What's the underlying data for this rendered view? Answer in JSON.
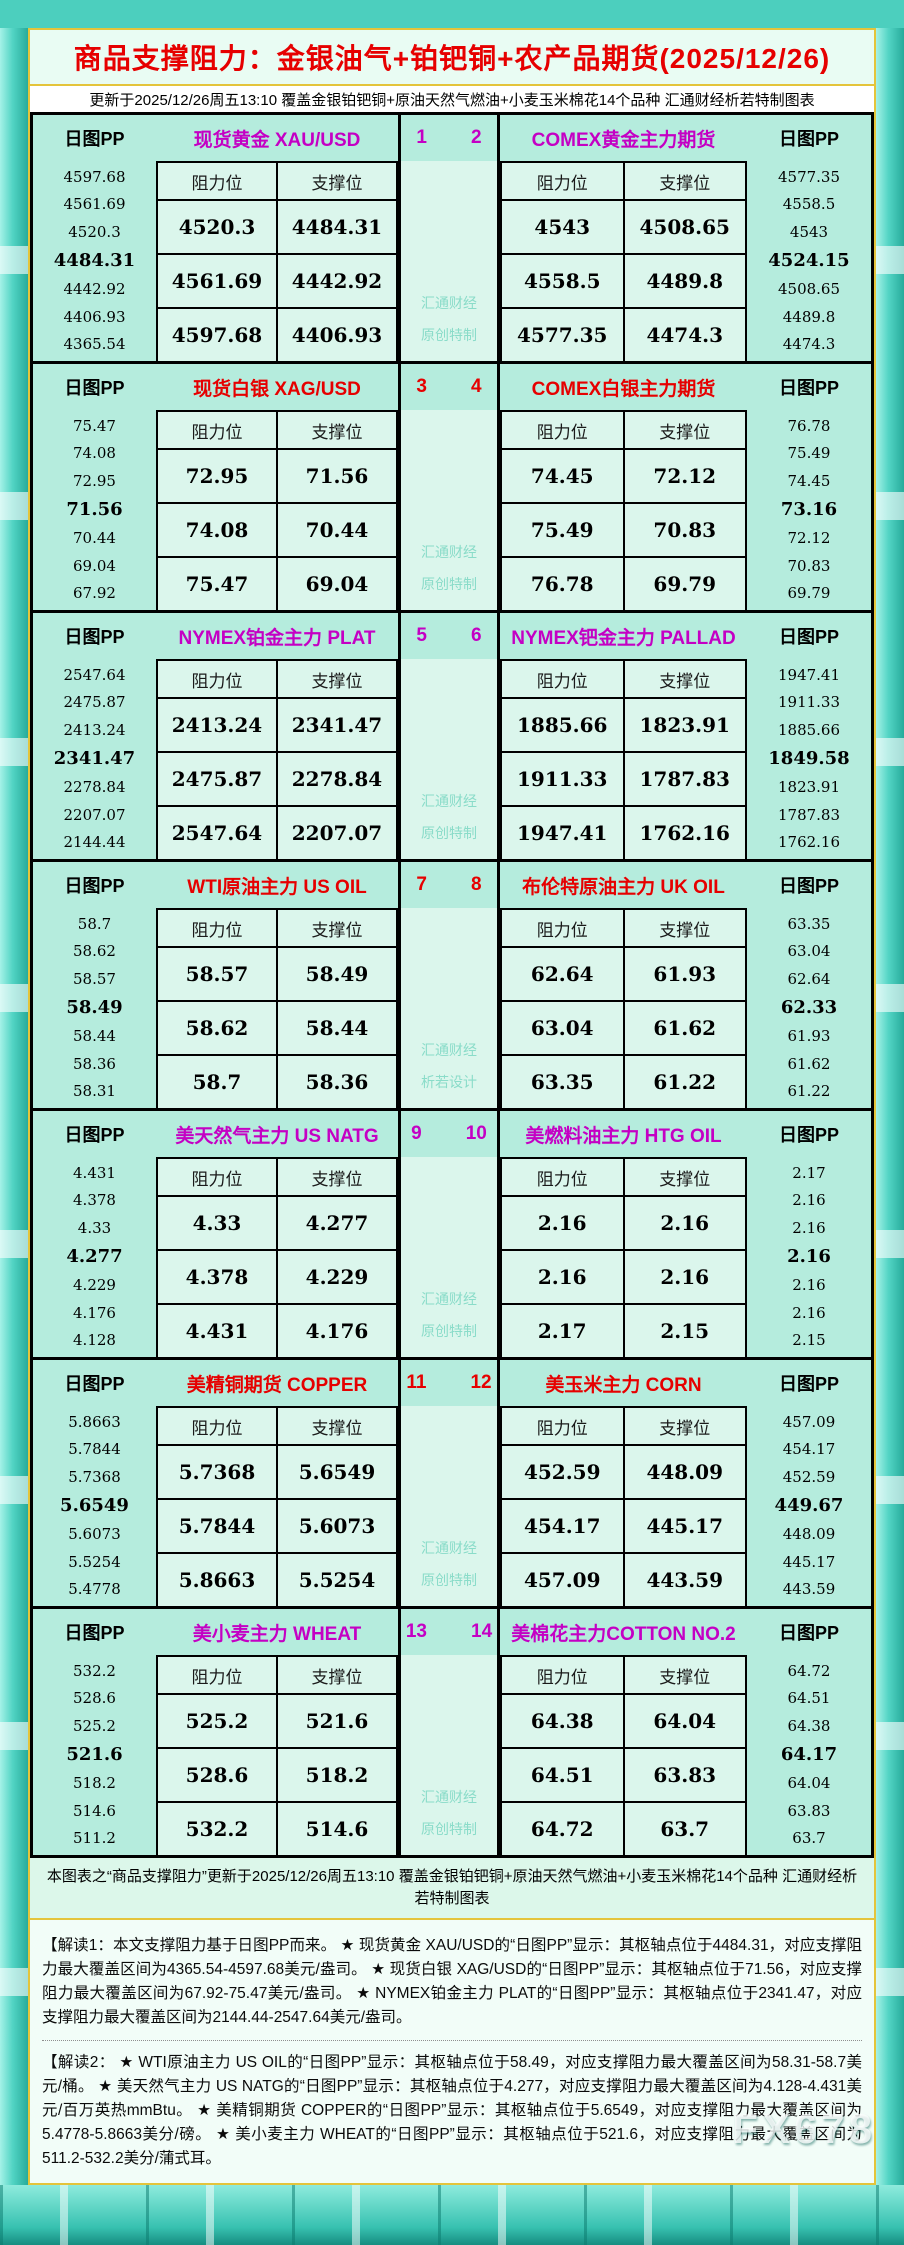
{
  "title": "商品支撑阻力：金银油气+铂钯铜+农产品期货(2025/12/26)",
  "subtitle": "更新于2025/12/26周五13:10 覆盖金银铂钯铜+原油天然气燃油+小麦玉米棉花14个品种 汇通财经析若特制图表",
  "labels": {
    "pp_header": "日图PP",
    "resistance": "阻力位",
    "support": "支撑位"
  },
  "colors": {
    "accent_purple": "#c400c4",
    "accent_red": "#e60000",
    "title_red": "#e60000",
    "table_aqua": "#b5ecdd",
    "cell_mint": "#dbf6ec",
    "gold_border": "#e4c43b",
    "watermark_teal": "#8adcc9"
  },
  "footer_note": "本图表之“商品支撑阻力”更新于2025/12/26周五13:10 覆盖金银铂钯铜+原油天然气燃油+小麦玉米棉花14个品种 汇通财经析若特制图表",
  "notes": [
    "【解读1：本文支撑阻力基于日图PP而来。 ★ 现货黄金 XAU/USD的“日图PP”显示：其枢轴点位于4484.31，对应支撑阻力最大覆盖区间为4365.54-4597.68美元/盎司。 ★ 现货白银 XAG/USD的“日图PP”显示：其枢轴点位于71.56，对应支撑阻力最大覆盖区间为67.92-75.47美元/盎司。 ★ NYMEX铂金主力 PLAT的“日图PP”显示：其枢轴点位于2341.47，对应支撑阻力最大覆盖区间为2144.44-2547.64美元/盎司。",
    "【解读2： ★ WTI原油主力 US OIL的“日图PP”显示：其枢轴点位于58.49，对应支撑阻力最大覆盖区间为58.31-58.7美元/桶。 ★ 美天然气主力 US NATG的“日图PP”显示：其枢轴点位于4.277，对应支撑阻力最大覆盖区间为4.128-4.431美元/百万英热mmBtu。 ★ 美精铜期货 COPPER的“日图PP”显示：其枢轴点位于5.6549，对应支撑阻力最大覆盖区间为5.4778-5.8663美分/磅。 ★ 美小麦主力 WHEAT的“日图PP”显示：其枢轴点位于521.6，对应支撑阻力最大覆盖区间为511.2-532.2美分/蒲式耳。"
  ],
  "watermark_brand": "FX678",
  "chart_data": {
    "type": "table",
    "title": "商品支撑阻力：金银油气+铂钯铜+农产品期货(2025/12/26)",
    "updated": "2025/12/26周五13:10",
    "columns": [
      "阻力位",
      "支撑位"
    ],
    "sections": [
      {
        "pair": [
          "1",
          "2"
        ],
        "accent": "purple",
        "watermark_lines": [
          "汇通财经",
          "原创特制"
        ],
        "left": {
          "name": "现货黄金 XAU/USD",
          "pivot_index": 3,
          "pp_levels": [
            "4597.68",
            "4561.69",
            "4520.3",
            "4484.31",
            "4442.92",
            "4406.93",
            "4365.54"
          ],
          "rows": [
            [
              "4520.3",
              "4484.31"
            ],
            [
              "4561.69",
              "4442.92"
            ],
            [
              "4597.68",
              "4406.93"
            ]
          ]
        },
        "right": {
          "name": "COMEX黄金主力期货",
          "pivot_index": 3,
          "pp_levels": [
            "4577.35",
            "4558.5",
            "4543",
            "4524.15",
            "4508.65",
            "4489.8",
            "4474.3"
          ],
          "rows": [
            [
              "4543",
              "4508.65"
            ],
            [
              "4558.5",
              "4489.8"
            ],
            [
              "4577.35",
              "4474.3"
            ]
          ]
        }
      },
      {
        "pair": [
          "3",
          "4"
        ],
        "accent": "red",
        "watermark_lines": [
          "汇通财经",
          "原创特制"
        ],
        "left": {
          "name": "现货白银 XAG/USD",
          "pivot_index": 3,
          "pp_levels": [
            "75.47",
            "74.08",
            "72.95",
            "71.56",
            "70.44",
            "69.04",
            "67.92"
          ],
          "rows": [
            [
              "72.95",
              "71.56"
            ],
            [
              "74.08",
              "70.44"
            ],
            [
              "75.47",
              "69.04"
            ]
          ]
        },
        "right": {
          "name": "COMEX白银主力期货",
          "pivot_index": 3,
          "pp_levels": [
            "76.78",
            "75.49",
            "74.45",
            "73.16",
            "72.12",
            "70.83",
            "69.79"
          ],
          "rows": [
            [
              "74.45",
              "72.12"
            ],
            [
              "75.49",
              "70.83"
            ],
            [
              "76.78",
              "69.79"
            ]
          ]
        }
      },
      {
        "pair": [
          "5",
          "6"
        ],
        "accent": "purple",
        "watermark_lines": [
          "汇通财经",
          "原创特制"
        ],
        "left": {
          "name": "NYMEX铂金主力 PLAT",
          "pivot_index": 3,
          "pp_levels": [
            "2547.64",
            "2475.87",
            "2413.24",
            "2341.47",
            "2278.84",
            "2207.07",
            "2144.44"
          ],
          "rows": [
            [
              "2413.24",
              "2341.47"
            ],
            [
              "2475.87",
              "2278.84"
            ],
            [
              "2547.64",
              "2207.07"
            ]
          ]
        },
        "right": {
          "name": "NYMEX钯金主力 PALLAD",
          "pivot_index": 3,
          "pp_levels": [
            "1947.41",
            "1911.33",
            "1885.66",
            "1849.58",
            "1823.91",
            "1787.83",
            "1762.16"
          ],
          "rows": [
            [
              "1885.66",
              "1823.91"
            ],
            [
              "1911.33",
              "1787.83"
            ],
            [
              "1947.41",
              "1762.16"
            ]
          ]
        }
      },
      {
        "pair": [
          "7",
          "8"
        ],
        "accent": "red",
        "watermark_lines": [
          "汇通财经",
          "析若设计"
        ],
        "left": {
          "name": "WTI原油主力 US OIL",
          "pivot_index": 3,
          "pp_levels": [
            "58.7",
            "58.62",
            "58.57",
            "58.49",
            "58.44",
            "58.36",
            "58.31"
          ],
          "rows": [
            [
              "58.57",
              "58.49"
            ],
            [
              "58.62",
              "58.44"
            ],
            [
              "58.7",
              "58.36"
            ]
          ]
        },
        "right": {
          "name": "布伦特原油主力 UK OIL",
          "pivot_index": 3,
          "pp_levels": [
            "63.35",
            "63.04",
            "62.64",
            "62.33",
            "61.93",
            "61.62",
            "61.22"
          ],
          "rows": [
            [
              "62.64",
              "61.93"
            ],
            [
              "63.04",
              "61.62"
            ],
            [
              "63.35",
              "61.22"
            ]
          ]
        }
      },
      {
        "pair": [
          "9",
          "10"
        ],
        "accent": "purple",
        "watermark_lines": [
          "汇通财经",
          "原创特制"
        ],
        "left": {
          "name": "美天然气主力 US NATG",
          "pivot_index": 3,
          "pp_levels": [
            "4.431",
            "4.378",
            "4.33",
            "4.277",
            "4.229",
            "4.176",
            "4.128"
          ],
          "rows": [
            [
              "4.33",
              "4.277"
            ],
            [
              "4.378",
              "4.229"
            ],
            [
              "4.431",
              "4.176"
            ]
          ]
        },
        "right": {
          "name": "美燃料油主力 HTG OIL",
          "pivot_index": 3,
          "pp_levels": [
            "2.17",
            "2.16",
            "2.16",
            "2.16",
            "2.16",
            "2.16",
            "2.15"
          ],
          "rows": [
            [
              "2.16",
              "2.16"
            ],
            [
              "2.16",
              "2.16"
            ],
            [
              "2.17",
              "2.15"
            ]
          ]
        }
      },
      {
        "pair": [
          "11",
          "12"
        ],
        "accent": "red",
        "watermark_lines": [
          "汇通财经",
          "原创特制"
        ],
        "left": {
          "name": "美精铜期货 COPPER",
          "pivot_index": 3,
          "pp_levels": [
            "5.8663",
            "5.7844",
            "5.7368",
            "5.6549",
            "5.6073",
            "5.5254",
            "5.4778"
          ],
          "rows": [
            [
              "5.7368",
              "5.6549"
            ],
            [
              "5.7844",
              "5.6073"
            ],
            [
              "5.8663",
              "5.5254"
            ]
          ]
        },
        "right": {
          "name": "美玉米主力 CORN",
          "pivot_index": 3,
          "pp_levels": [
            "457.09",
            "454.17",
            "452.59",
            "449.67",
            "448.09",
            "445.17",
            "443.59"
          ],
          "rows": [
            [
              "452.59",
              "448.09"
            ],
            [
              "454.17",
              "445.17"
            ],
            [
              "457.09",
              "443.59"
            ]
          ]
        }
      },
      {
        "pair": [
          "13",
          "14"
        ],
        "accent": "purple",
        "watermark_lines": [
          "汇通财经",
          "原创特制"
        ],
        "left": {
          "name": "美小麦主力 WHEAT",
          "pivot_index": 3,
          "pp_levels": [
            "532.2",
            "528.6",
            "525.2",
            "521.6",
            "518.2",
            "514.6",
            "511.2"
          ],
          "rows": [
            [
              "525.2",
              "521.6"
            ],
            [
              "528.6",
              "518.2"
            ],
            [
              "532.2",
              "514.6"
            ]
          ]
        },
        "right": {
          "name": "美棉花主力COTTON NO.2",
          "pivot_index": 3,
          "pp_levels": [
            "64.72",
            "64.51",
            "64.38",
            "64.17",
            "64.04",
            "63.83",
            "63.7"
          ],
          "rows": [
            [
              "64.38",
              "64.04"
            ],
            [
              "64.51",
              "63.83"
            ],
            [
              "64.72",
              "63.7"
            ]
          ]
        }
      }
    ]
  }
}
